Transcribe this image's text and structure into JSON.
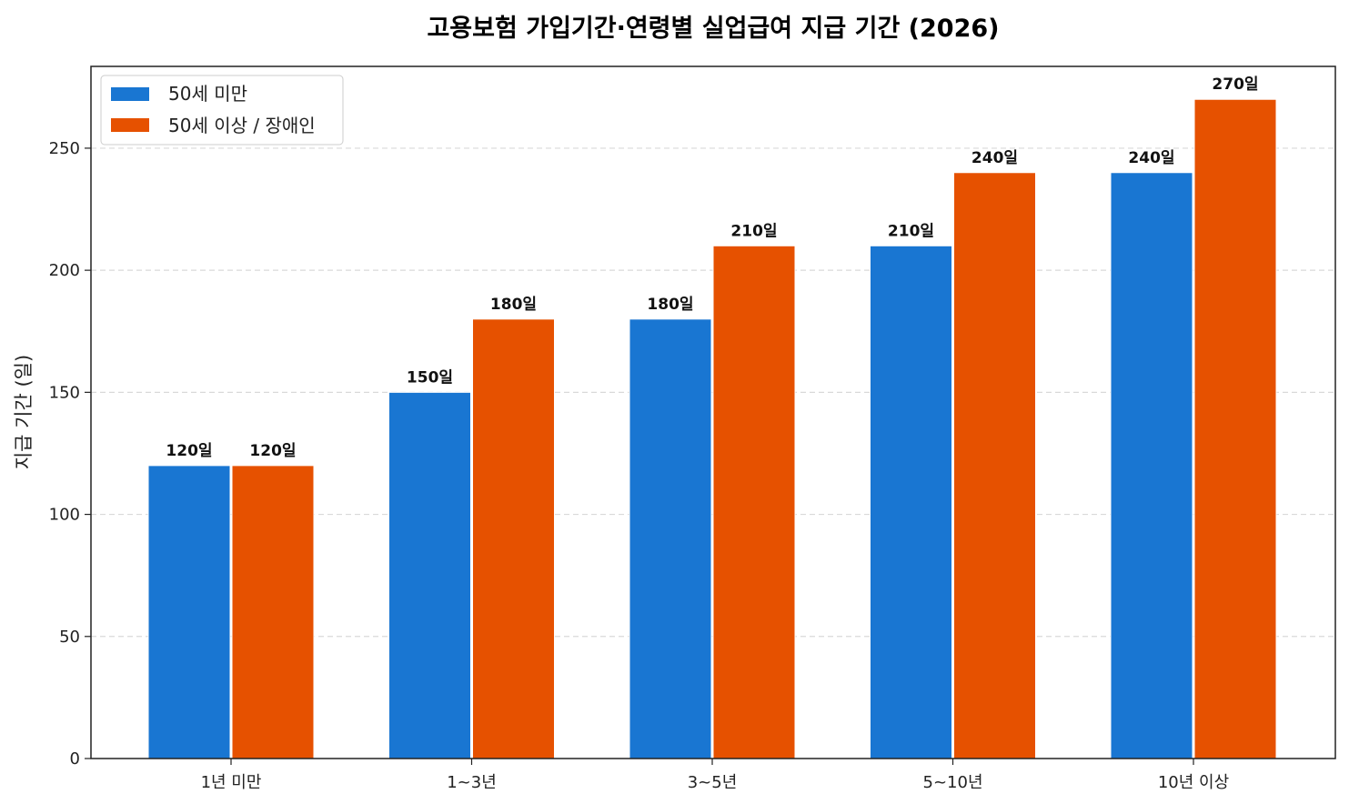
{
  "chart_data": {
    "type": "bar",
    "title": "고용보험 가입기간·연령별 실업급여 지급 기간 (2026)",
    "xlabel": "",
    "ylabel": "지급 기간 (일)",
    "categories": [
      "1년 미만",
      "1~3년",
      "3~5년",
      "5~10년",
      "10년 이상"
    ],
    "series": [
      {
        "name": "50세 미만",
        "color": "#1976d2",
        "values": [
          120,
          150,
          180,
          210,
          240
        ],
        "labels": [
          "120일",
          "150일",
          "180일",
          "210일",
          "240일"
        ]
      },
      {
        "name": "50세 이상 / 장애인",
        "color": "#e65100",
        "values": [
          120,
          180,
          210,
          240,
          270
        ],
        "labels": [
          "120일",
          "180일",
          "210일",
          "240일",
          "270일"
        ]
      }
    ],
    "ylim": [
      0,
      283.5
    ],
    "yticks": [
      0,
      50,
      100,
      150,
      200,
      250
    ],
    "ytick_labels": [
      "0",
      "50",
      "100",
      "150",
      "200",
      "250"
    ],
    "grid": "y-dashed",
    "legend": "top-left"
  }
}
